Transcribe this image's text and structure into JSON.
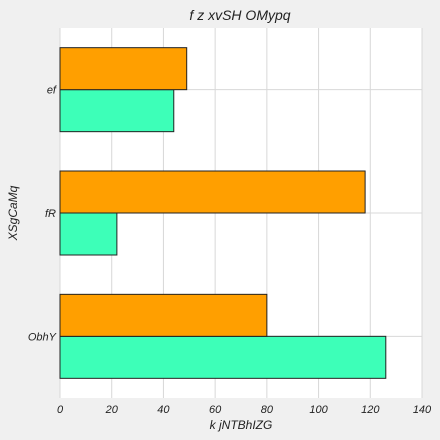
{
  "chart_data": {
    "type": "bar",
    "orientation": "horizontal",
    "title": "f z xvSH OMypq",
    "xlabel": "k  jNTBhIZG",
    "ylabel": "XSgCaMq",
    "categories": [
      "ObhY",
      "fR",
      "ef"
    ],
    "xlim": [
      0,
      140
    ],
    "xticks": [
      0,
      20,
      40,
      60,
      80,
      100,
      120,
      140
    ],
    "grid": true,
    "series": [
      {
        "color": "#3dffb8",
        "values": [
          126,
          22,
          44
        ]
      },
      {
        "color": "#ff9f00",
        "values": [
          80,
          118,
          49
        ]
      }
    ]
  }
}
